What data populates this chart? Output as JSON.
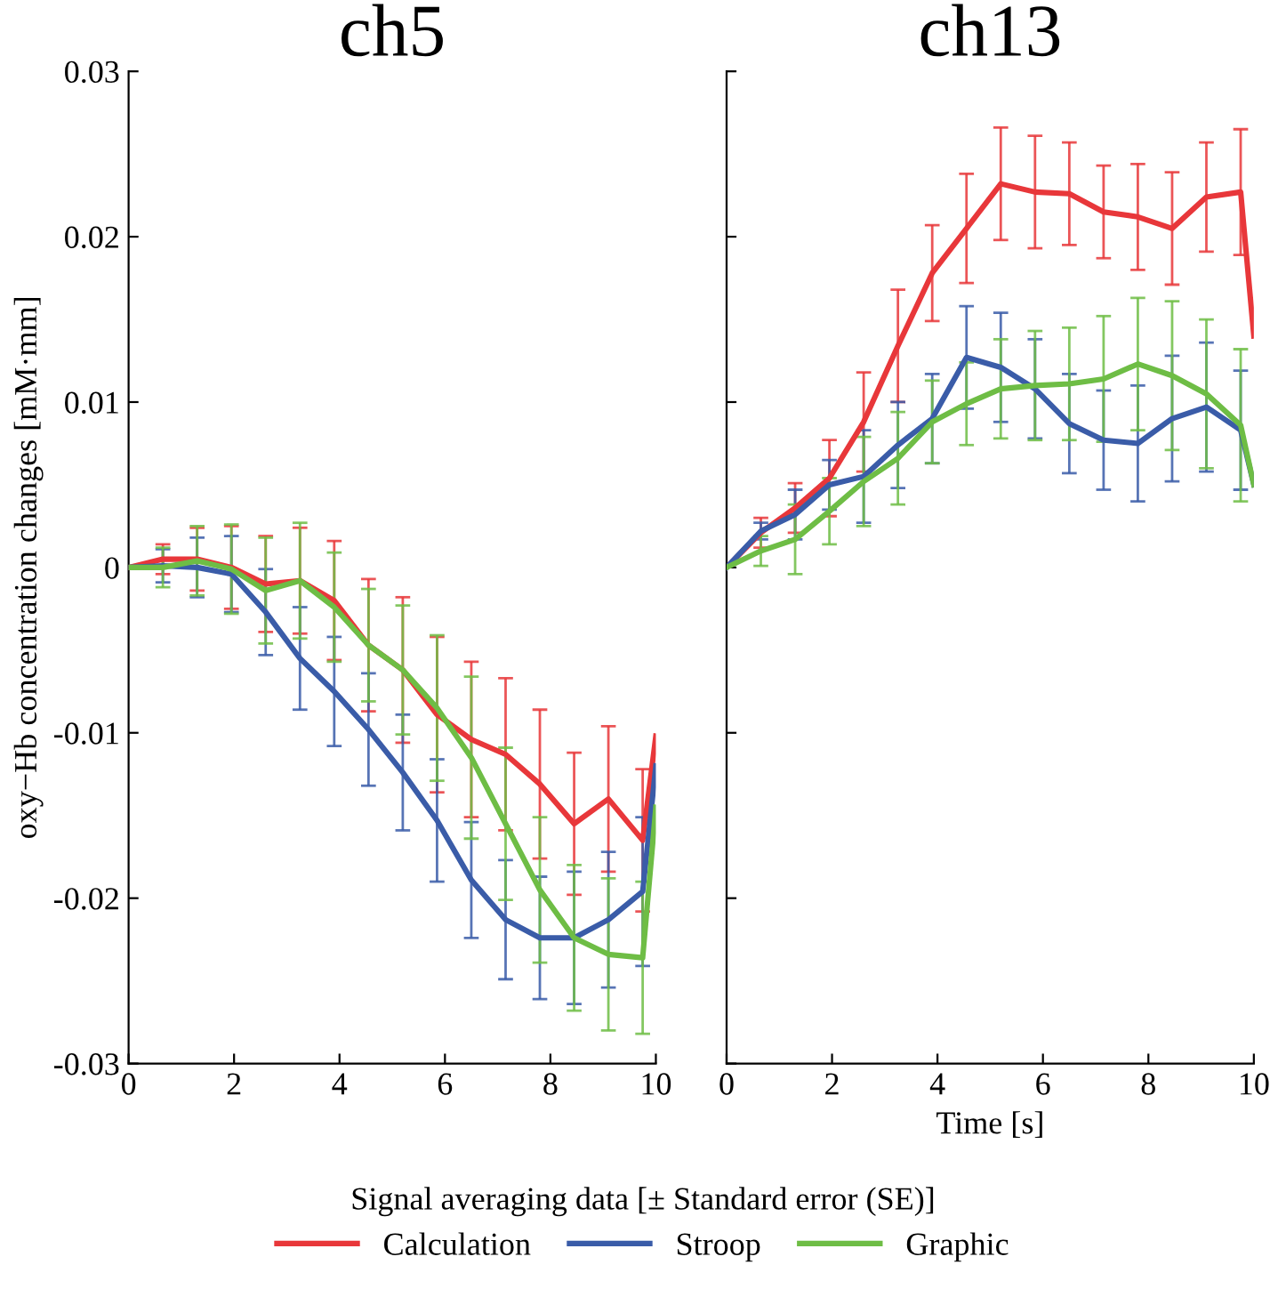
{
  "chart_data": [
    {
      "type": "line",
      "title": "ch5",
      "ylabel": "oxy−Hb concentration changes [mM·mm]",
      "x": [
        0,
        0.65,
        1.3,
        1.95,
        2.6,
        3.25,
        3.9,
        4.55,
        5.2,
        5.85,
        6.5,
        7.15,
        7.8,
        8.45,
        9.1,
        9.75,
        10
      ],
      "xlim": [
        0,
        10
      ],
      "xticks": [
        0,
        2,
        4,
        6,
        8,
        10
      ],
      "ylim": [
        -0.03,
        0.03
      ],
      "yticks": [
        -0.03,
        -0.02,
        -0.01,
        0,
        0.01,
        0.02,
        0.03
      ],
      "grid": false,
      "marker": "none",
      "line_style": "solid",
      "legend": "bottom",
      "legend_title": "Signal averaging data [± Standard error (SE)]",
      "series": [
        {
          "name": "Calculation",
          "color": "#e8373a",
          "values": [
            0,
            0.0005,
            0.0005,
            0,
            -0.001,
            -0.0008,
            -0.002,
            -0.0047,
            -0.0062,
            -0.0089,
            -0.0104,
            -0.0113,
            -0.0131,
            -0.0155,
            -0.014,
            -0.0165,
            -0.0102
          ],
          "errors": [
            null,
            0.0009,
            0.0019,
            0.0025,
            0.0029,
            0.0032,
            0.0036,
            0.004,
            0.0044,
            0.0047,
            0.0047,
            0.0046,
            0.0045,
            0.0043,
            0.0044,
            0.0043,
            null
          ]
        },
        {
          "name": "Stroop",
          "color": "#3a5ca8",
          "values": [
            0,
            0.0001,
            0,
            -0.0004,
            -0.0027,
            -0.0055,
            -0.0075,
            -0.0098,
            -0.0124,
            -0.0153,
            -0.0189,
            -0.0213,
            -0.0224,
            -0.0224,
            -0.0213,
            -0.0196,
            -0.012
          ],
          "errors": [
            null,
            0.001,
            0.0018,
            0.0023,
            0.0026,
            0.0031,
            0.0033,
            0.0034,
            0.0035,
            0.0037,
            0.0035,
            0.0036,
            0.0037,
            0.004,
            0.0041,
            0.0045,
            null
          ]
        },
        {
          "name": "Graphic",
          "color": "#6ebd45",
          "values": [
            0,
            0,
            0.0004,
            -0.0001,
            -0.0014,
            -0.0008,
            -0.0024,
            -0.0047,
            -0.0062,
            -0.0085,
            -0.0115,
            -0.0155,
            -0.0195,
            -0.0224,
            -0.0234,
            -0.0236,
            -0.0145
          ],
          "errors": [
            null,
            0.0012,
            0.0021,
            0.0027,
            0.0032,
            0.0035,
            0.0033,
            0.0034,
            0.0039,
            0.0044,
            0.0049,
            0.0046,
            0.0044,
            0.0044,
            0.0046,
            0.0046,
            null
          ]
        }
      ]
    },
    {
      "type": "line",
      "title": "ch13",
      "xlabel": "Time [s]",
      "tick_labels": "x",
      "x": [
        0,
        0.65,
        1.3,
        1.95,
        2.6,
        3.25,
        3.9,
        4.55,
        5.2,
        5.85,
        6.5,
        7.15,
        7.8,
        8.45,
        9.1,
        9.75,
        10
      ],
      "xlim": [
        0,
        10
      ],
      "xticks": [
        0,
        2,
        4,
        6,
        8,
        10
      ],
      "ylim": [
        -0.03,
        0.03
      ],
      "yticks": [
        -0.03,
        -0.02,
        -0.01,
        0,
        0.01,
        0.02,
        0.03
      ],
      "grid": false,
      "marker": "none",
      "line_style": "solid",
      "series": [
        {
          "color": "#e8373a",
          "values": [
            0,
            0.0021,
            0.0036,
            0.0054,
            0.0088,
            0.0134,
            0.0178,
            0.0205,
            0.0232,
            0.0227,
            0.0226,
            0.0215,
            0.0212,
            0.0205,
            0.0224,
            0.0227,
            0.014
          ],
          "errors": [
            null,
            0.0009,
            0.0015,
            0.0023,
            0.003,
            0.0034,
            0.0029,
            0.0033,
            0.0034,
            0.0034,
            0.0031,
            0.0028,
            0.0032,
            0.0034,
            0.0033,
            0.0038,
            null
          ]
        },
        {
          "color": "#3a5ca8",
          "values": [
            0,
            0.0022,
            0.0032,
            0.005,
            0.0055,
            0.0074,
            0.009,
            0.0127,
            0.0121,
            0.0108,
            0.0087,
            0.0077,
            0.0075,
            0.009,
            0.0097,
            0.0083,
            0.005
          ],
          "errors": [
            null,
            0.0005,
            0.0015,
            0.0015,
            0.0028,
            0.0026,
            0.0027,
            0.0031,
            0.0033,
            0.003,
            0.003,
            0.003,
            0.0035,
            0.0038,
            0.0039,
            0.0036,
            null
          ]
        },
        {
          "color": "#6ebd45",
          "values": [
            0,
            0.001,
            0.0017,
            0.0034,
            0.0052,
            0.0066,
            0.0088,
            0.0099,
            0.0108,
            0.011,
            0.0111,
            0.0114,
            0.0123,
            0.0116,
            0.0105,
            0.0086,
            0.005
          ],
          "errors": [
            null,
            0.0009,
            0.0021,
            0.002,
            0.0027,
            0.0028,
            0.0025,
            0.0025,
            0.003,
            0.0033,
            0.0034,
            0.0038,
            0.004,
            0.0045,
            0.0045,
            0.0046,
            null
          ]
        }
      ]
    }
  ]
}
